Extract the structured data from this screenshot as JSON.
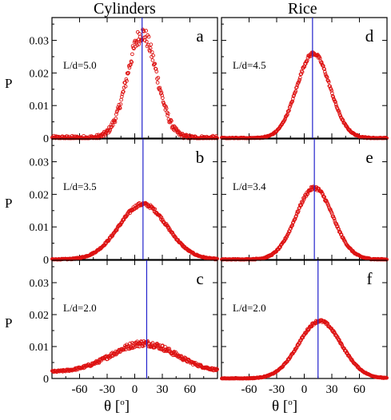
{
  "figure": {
    "columns": [
      "Cylinders",
      "Rice"
    ],
    "ylabel": "P",
    "xlabel_prefix": "θ [",
    "xlabel_sup": "o",
    "xlabel_suffix": "]",
    "x_ticks": [
      -60,
      -30,
      0,
      30,
      60
    ],
    "y_ticks": [
      "0",
      "0.01",
      "0.02",
      "0.03"
    ],
    "colors": {
      "data": "#dd1111",
      "line": "#2222cc",
      "axes": "#000000"
    }
  },
  "chart_data": [
    {
      "type": "scatter",
      "panel": "a",
      "annotation": "L/d=5.0",
      "xlim": [
        -90,
        90
      ],
      "ylim": [
        0,
        0.037
      ],
      "peak_x": 8,
      "peak_y": 0.032,
      "baseline": 0.0,
      "width": 16,
      "noise": 0.0018,
      "vline_x": 8,
      "series": [
        {
          "x_range": [
            -90,
            90
          ],
          "y_peak": 0.032
        }
      ]
    },
    {
      "type": "scatter",
      "panel": "b",
      "annotation": "L/d=3.5",
      "xlim": [
        -90,
        90
      ],
      "ylim": [
        0,
        0.037
      ],
      "peak_x": 9,
      "peak_y": 0.017,
      "baseline": 0.0,
      "width": 26,
      "noise": 0.0004,
      "vline_x": 9,
      "series": [
        {
          "x_range": [
            -90,
            90
          ],
          "y_peak": 0.017
        }
      ]
    },
    {
      "type": "scatter",
      "panel": "c",
      "annotation": "L/d=2.0",
      "xlim": [
        -90,
        90
      ],
      "ylim": [
        0,
        0.037
      ],
      "peak_x": 10,
      "peak_y": 0.011,
      "baseline": 0.002,
      "width": 35,
      "noise": 0.0007,
      "vline_x": 13,
      "series": [
        {
          "x_range": [
            -90,
            90
          ],
          "y_peak": 0.011
        }
      ]
    },
    {
      "type": "scatter",
      "panel": "d",
      "annotation": "L/d=4.5",
      "xlim": [
        -90,
        90
      ],
      "ylim": [
        0,
        0.037
      ],
      "peak_x": 10,
      "peak_y": 0.026,
      "baseline": 0.0,
      "width": 18,
      "noise": 0.0004,
      "vline_x": 9,
      "series": [
        {
          "x_range": [
            -90,
            90
          ],
          "y_peak": 0.026
        }
      ]
    },
    {
      "type": "scatter",
      "panel": "e",
      "annotation": "L/d=3.4",
      "xlim": [
        -90,
        90
      ],
      "ylim": [
        0,
        0.037
      ],
      "peak_x": 11,
      "peak_y": 0.022,
      "baseline": 0.0,
      "width": 20,
      "noise": 0.0004,
      "vline_x": 11,
      "series": [
        {
          "x_range": [
            -90,
            90
          ],
          "y_peak": 0.022
        }
      ]
    },
    {
      "type": "scatter",
      "panel": "f",
      "annotation": "L/d=2.0",
      "xlim": [
        -90,
        90
      ],
      "ylim": [
        0,
        0.037
      ],
      "peak_x": 17,
      "peak_y": 0.018,
      "baseline": 0.0,
      "width": 23,
      "noise": 0.0003,
      "vline_x": 15,
      "series": [
        {
          "x_range": [
            -90,
            90
          ],
          "y_peak": 0.018
        }
      ]
    }
  ]
}
